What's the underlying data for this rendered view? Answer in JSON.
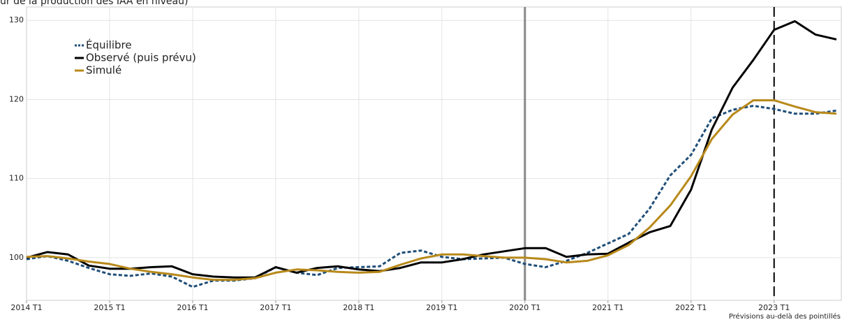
{
  "chart_data": {
    "type": "line",
    "title": "ur de la production des IAA en niveau)",
    "annotation": "Prévisions au-delà des pointillés",
    "categories": [
      "2014 T1",
      null,
      null,
      null,
      "2015 T1",
      null,
      null,
      null,
      "2016 T1",
      null,
      null,
      null,
      "2017 T1",
      null,
      null,
      null,
      "2018 T1",
      null,
      null,
      null,
      "2019 T1",
      null,
      null,
      null,
      "2020 T1",
      null,
      null,
      null,
      "2021 T1",
      null,
      null,
      null,
      "2022 T1",
      null,
      null,
      null,
      "2023 T1",
      null,
      null,
      null
    ],
    "series": [
      {
        "name": "Équilibre",
        "color": "#1f4e79",
        "dash": true,
        "values": [
          99.8,
          100.2,
          99.6,
          98.7,
          97.9,
          97.7,
          98.0,
          97.6,
          96.3,
          97.1,
          97.1,
          97.4,
          98.8,
          98.1,
          97.8,
          98.7,
          98.8,
          98.9,
          100.6,
          100.9,
          100.1,
          99.8,
          99.9,
          100.0,
          99.2,
          98.8,
          99.6,
          100.6,
          101.8,
          103.0,
          106.2,
          110.4,
          113.0,
          117.6,
          118.7,
          119.2,
          118.8,
          118.2,
          118.2,
          118.6
        ]
      },
      {
        "name": "Observé (puis prévu)",
        "color": "#000000",
        "dash": false,
        "values": [
          100.0,
          100.7,
          100.4,
          99.0,
          98.6,
          98.6,
          98.8,
          98.9,
          97.9,
          97.6,
          97.5,
          97.5,
          98.8,
          98.1,
          98.7,
          98.9,
          98.5,
          98.3,
          98.7,
          99.4,
          99.4,
          99.8,
          100.4,
          100.8,
          101.2,
          101.2,
          100.1,
          100.4,
          100.5,
          101.9,
          103.2,
          104.0,
          108.6,
          116.2,
          121.5,
          125.0,
          128.8,
          129.9,
          128.2,
          127.6
        ]
      },
      {
        "name": "Simulé",
        "color": "#b8891a",
        "dash": false,
        "values": [
          100.1,
          100.2,
          99.9,
          99.5,
          99.2,
          98.6,
          98.2,
          97.9,
          97.5,
          97.2,
          97.2,
          97.4,
          98.1,
          98.5,
          98.4,
          98.2,
          98.1,
          98.2,
          99.1,
          99.9,
          100.4,
          100.4,
          100.2,
          100.0,
          100.0,
          99.8,
          99.4,
          99.6,
          100.3,
          101.6,
          103.8,
          106.6,
          110.3,
          115.0,
          118.1,
          119.9,
          119.9,
          119.1,
          118.4,
          118.2
        ]
      }
    ],
    "reference_lines": [
      {
        "x": "2020 T1",
        "color": "#888888",
        "dash": false
      },
      {
        "x": "2023 T1",
        "color": "#000000",
        "dash": true
      }
    ],
    "ylim": [
      94.6,
      131.7
    ],
    "yticks": [
      100,
      110,
      120,
      130
    ],
    "grid": true,
    "legend": "upper left"
  }
}
